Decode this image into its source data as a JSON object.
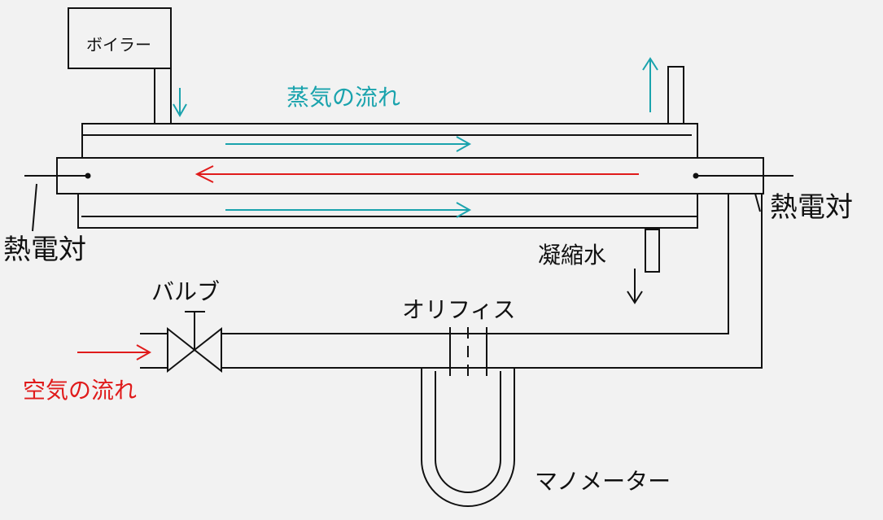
{
  "labels": {
    "boiler": "ボイラー",
    "steam_flow": "蒸気の流れ",
    "thermocouple_left": "熱電対",
    "thermocouple_right": "熱電対",
    "condensate": "凝縮水",
    "valve": "バルブ",
    "orifice": "オリフィス",
    "air_flow": "空気の流れ",
    "manometer": "マノメーター"
  },
  "colors": {
    "line": "#111111",
    "steam": "#1aa3ad",
    "air": "#e01b1b",
    "background": "#f2f2f2"
  }
}
